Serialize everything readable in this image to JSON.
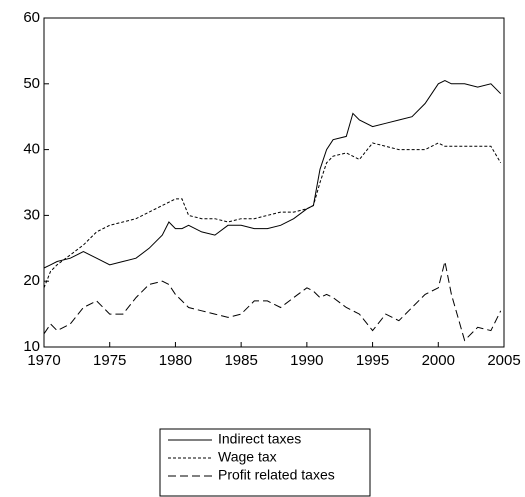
{
  "chart_data": {
    "type": "line",
    "x": [
      1970,
      1970.5,
      1971,
      1972,
      1973,
      1974,
      1975,
      1976,
      1977,
      1978,
      1979,
      1979.5,
      1980,
      1980.5,
      1981,
      1982,
      1983,
      1984,
      1985,
      1986,
      1987,
      1988,
      1989,
      1990,
      1990.5,
      1991,
      1991.5,
      1992,
      1993,
      1993.5,
      1994,
      1995,
      1996,
      1997,
      1998,
      1999,
      2000,
      2000.5,
      2001,
      2002,
      2003,
      2004,
      2004.75
    ],
    "series": [
      {
        "name": "Indirect taxes",
        "color": "#000000",
        "values": [
          22,
          22.5,
          23,
          23.5,
          24.5,
          23.5,
          22.5,
          23,
          23.5,
          25,
          27,
          29,
          28,
          28,
          28.5,
          27.5,
          27,
          28.5,
          28.5,
          28,
          28,
          28.5,
          29.5,
          31,
          31.5,
          37,
          40,
          41.5,
          42,
          45.5,
          44.5,
          43.5,
          44,
          44.5,
          45,
          47,
          50,
          50.5,
          50,
          50,
          49.5,
          50,
          48.5
        ]
      },
      {
        "name": "Wage tax",
        "color": "#000000",
        "values": [
          19,
          21.5,
          22.5,
          24,
          25.5,
          27.5,
          28.5,
          29,
          29.5,
          30.5,
          31.5,
          32,
          32.5,
          32.5,
          30,
          29.5,
          29.5,
          29,
          29.5,
          29.5,
          30,
          30.5,
          30.5,
          31,
          31.5,
          35,
          38,
          39,
          39.5,
          39,
          38.5,
          41,
          40.5,
          40,
          40,
          40,
          41,
          40.5,
          40.5,
          40.5,
          40.5,
          40.5,
          38
        ]
      },
      {
        "name": "Profit related taxes",
        "color": "#000000",
        "values": [
          12,
          13.5,
          12.5,
          13.5,
          16,
          17,
          15,
          15,
          17.5,
          19.5,
          20,
          19.5,
          18,
          17,
          16,
          15.5,
          15,
          14.5,
          15,
          17,
          17,
          16,
          17.5,
          19,
          18.5,
          17.5,
          18,
          17.5,
          16,
          15.5,
          15,
          12.5,
          15,
          14,
          16,
          18,
          19,
          23,
          18,
          11,
          13,
          12.5,
          15.5
        ]
      }
    ],
    "xlim": [
      1970,
      2005
    ],
    "xticks": [
      1970,
      1975,
      1980,
      1985,
      1990,
      1995,
      2000,
      2005
    ],
    "ylim": [
      10,
      60
    ],
    "yticks": [
      10,
      20,
      30,
      40,
      50,
      60
    ]
  }
}
